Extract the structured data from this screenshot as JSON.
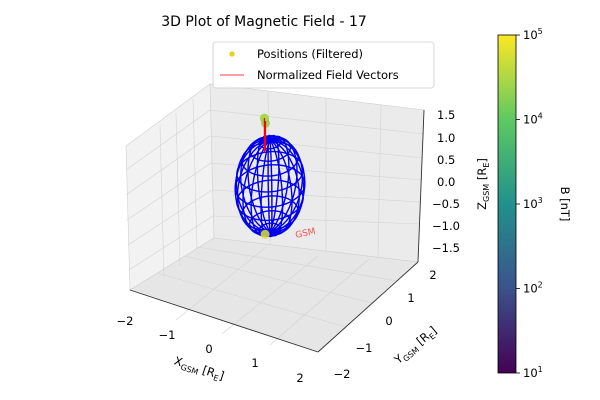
{
  "chart_data": {
    "type": "scatter",
    "title": "3D Plot of Magnetic Field - 17",
    "projection": "3d",
    "xlabel": "X_GSM [R_E]",
    "ylabel": "Y_GSM [R_E]",
    "zlabel": "Z_GSM [R_E]",
    "xlim": [
      -2.2,
      2.2
    ],
    "ylim": [
      -2.2,
      2.2
    ],
    "zlim": [
      -1.8,
      1.6
    ],
    "xticks": [
      "−2",
      "−1",
      "0",
      "1",
      "2"
    ],
    "yticks": [
      "−2",
      "−1",
      "0",
      "1",
      "2"
    ],
    "zticks": [
      "1.5",
      "1.0",
      "0.5",
      "0.0",
      "−0.5",
      "−1.0",
      "−1.5"
    ],
    "legend": {
      "placement": "top-center",
      "entries": [
        "Positions (Filtered)",
        "Normalized Field Vectors"
      ]
    },
    "series": [
      {
        "name": "Positions (Filtered)",
        "marker": "point",
        "color_by": "B",
        "points": [
          {
            "x": -0.55,
            "y": 0.25,
            "z": 1.2,
            "B": 25000
          },
          {
            "x": -0.5,
            "y": 0.2,
            "z": 1.25,
            "B": 30000
          },
          {
            "x": -0.45,
            "y": 0.2,
            "z": 1.15,
            "B": 20000
          },
          {
            "x": -0.1,
            "y": -0.1,
            "z": -1.05,
            "B": 60000
          }
        ]
      },
      {
        "name": "Normalized Field Vectors",
        "type": "line",
        "color": "#ff0000",
        "segments": [
          {
            "x0": -0.5,
            "y0": 0.2,
            "z0": 1.25,
            "x1": -0.5,
            "y1": 0.2,
            "z1": 0.5
          },
          {
            "x0": -0.45,
            "y0": 0.2,
            "z0": 1.2,
            "x1": -0.45,
            "y1": 0.2,
            "z1": 0.55
          }
        ]
      }
    ],
    "annotations": [
      {
        "text": "GSM",
        "x": 0.3,
        "y": -0.3,
        "z": -0.7,
        "color": "#ff4d4d"
      }
    ],
    "wireframe_sphere": {
      "radius": 1.0,
      "color": "#0000ee"
    },
    "colorbar": {
      "label": "B [nT]",
      "scale": "log",
      "range": [
        10,
        100000
      ],
      "colormap": "viridis",
      "ticks": [
        {
          "base": "10",
          "exp": "1",
          "value": 10
        },
        {
          "base": "10",
          "exp": "2",
          "value": 100
        },
        {
          "base": "10",
          "exp": "3",
          "value": 1000
        },
        {
          "base": "10",
          "exp": "4",
          "value": 10000
        },
        {
          "base": "10",
          "exp": "5",
          "value": 100000
        }
      ]
    }
  }
}
